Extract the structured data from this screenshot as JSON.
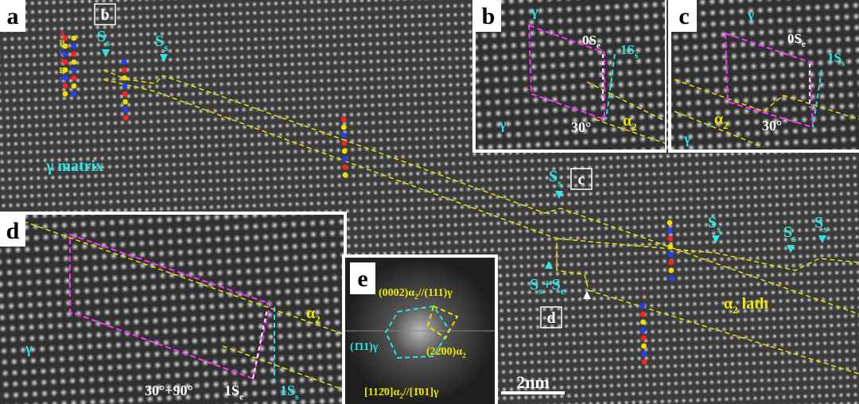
{
  "panel_a": {
    "letter": "a",
    "boxes": [
      "b",
      "c",
      "d"
    ],
    "stacking": [
      "A",
      "B",
      "C",
      "A",
      "B",
      "C"
    ],
    "labels": [
      [
        "γ matrix"
      ],
      [
        "S",
        "s"
      ],
      [
        "S",
        "s"
      ],
      [
        "S",
        "s"
      ],
      [
        "S",
        "s"
      ],
      [
        "S",
        "s"
      ],
      [
        "S",
        "s"
      ],
      [
        "S",
        "s",
        "+S",
        "e"
      ],
      [
        "α",
        "2",
        " lath"
      ]
    ],
    "scale_bar": "2nm"
  },
  "panel_b": {
    "letter": "b",
    "labels": [
      [
        "γ"
      ],
      [
        "0S",
        "e"
      ],
      [
        "1S",
        "s"
      ],
      [
        "γ"
      ],
      [
        "α",
        "2"
      ],
      [
        "30°"
      ]
    ]
  },
  "panel_c": {
    "letter": "c",
    "labels": [
      [
        "γ"
      ],
      [
        "0S",
        "e"
      ],
      [
        "1S",
        "s"
      ],
      [
        "α",
        "2"
      ],
      [
        "γ"
      ],
      [
        "30°"
      ]
    ]
  },
  "panel_d": {
    "letter": "d",
    "labels": [
      [
        "α",
        "2"
      ],
      [
        "γ"
      ],
      [
        "30°+90°"
      ],
      [
        "1S",
        "e"
      ],
      [
        "1S",
        "s"
      ]
    ]
  },
  "panel_e": {
    "letter": "e",
    "labels": [
      [
        "(0002)α",
        "2",
        "//(111)γ"
      ],
      [
        "(1̄11)γ"
      ],
      [
        "(22̄00)α",
        "2"
      ],
      [
        "[112̄0]α",
        "2",
        "//[1̄01]γ"
      ]
    ]
  }
}
